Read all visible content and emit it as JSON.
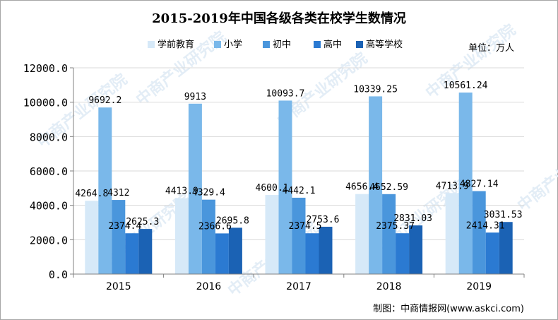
{
  "chart_data": {
    "type": "bar",
    "title": "2015-2019年中国各级各类在校学生数情况",
    "unit_label": "单位：万人",
    "source": "制图：中商情报网(www.askci.com)",
    "watermark": "中商产业研究院",
    "categories": [
      "2015",
      "2016",
      "2017",
      "2018",
      "2019"
    ],
    "series": [
      {
        "name": "学前教育",
        "values": [
          4264.8,
          4413.9,
          4600.1,
          4656.4,
          4713.9
        ],
        "labels": [
          "4264.8",
          "4413.9",
          "4600.1",
          "4656.4",
          "4713.9"
        ],
        "color": "#d6e9f8"
      },
      {
        "name": "小学",
        "values": [
          9692.2,
          9913,
          10093.7,
          10339.25,
          10561.24
        ],
        "labels": [
          "9692.2",
          "9913",
          "10093.7",
          "10339.25",
          "10561.24"
        ],
        "color": "#7ab8ea"
      },
      {
        "name": "初中",
        "values": [
          4312,
          4329.4,
          4442.1,
          4652.59,
          4827.14
        ],
        "labels": [
          "4312",
          "4329.4",
          "4442.1",
          "4652.59",
          "4827.14"
        ],
        "color": "#4a96dc"
      },
      {
        "name": "高中",
        "values": [
          2374.4,
          2366.6,
          2374.5,
          2375.37,
          2414.31
        ],
        "labels": [
          "2374.4",
          "2366.6",
          "2374.5",
          "2375.37",
          "2414.31"
        ],
        "color": "#2b7ad2"
      },
      {
        "name": "高等学校",
        "values": [
          2625.3,
          2695.8,
          2753.6,
          2831.03,
          3031.53
        ],
        "labels": [
          "2625.3",
          "2695.8",
          "2753.6",
          "2831.03",
          "3031.53"
        ],
        "color": "#1b62b4"
      }
    ],
    "ylim": [
      0,
      12000
    ],
    "yticks": [
      "0.0",
      "2000.0",
      "4000.0",
      "6000.0",
      "8000.0",
      "10000.0",
      "12000.0"
    ],
    "grid": true,
    "legend": "top"
  }
}
